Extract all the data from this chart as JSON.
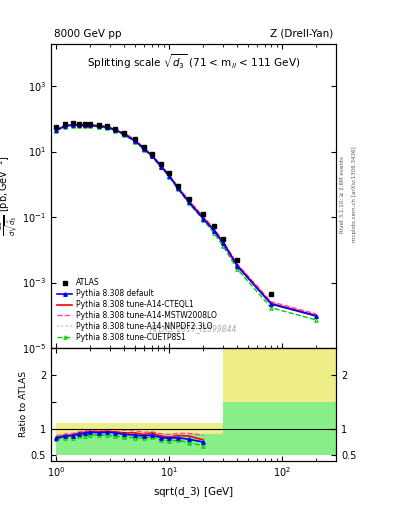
{
  "title_left": "8000 GeV pp",
  "title_right": "Z (Drell-Yan)",
  "inner_title": "Splitting scale $\\sqrt{\\mathrm{d}_3}$ (71 < m$_{ll}$ < 111 GeV)",
  "ylabel_main": "d$\\sigma$/dsqrt($\\widetilde{d}_3$) [pb,GeV$^{-1}$]",
  "ylabel_ratio": "Ratio to ATLAS",
  "xlabel": "sqrt{d_3} [GeV]",
  "watermark": "ATLAS_2017_I1599844",
  "atlas_x": [
    1.0,
    1.2,
    1.4,
    1.6,
    1.8,
    2.0,
    2.4,
    2.8,
    3.3,
    4.0,
    5.0,
    6.0,
    7.0,
    8.5,
    10.0,
    12.0,
    15.0,
    20.0,
    25.0,
    30.0,
    40.0,
    80.0
  ],
  "atlas_y": [
    55,
    70,
    75,
    72,
    70,
    68,
    65,
    60,
    50,
    38,
    24,
    14,
    8.5,
    4.2,
    2.2,
    0.9,
    0.35,
    0.12,
    0.055,
    0.022,
    0.005,
    0.00045
  ],
  "pythia_default_x": [
    1.0,
    1.2,
    1.4,
    1.6,
    1.8,
    2.0,
    2.4,
    2.8,
    3.3,
    4.0,
    5.0,
    6.0,
    7.0,
    8.5,
    10.0,
    12.0,
    15.0,
    20.0,
    25.0,
    30.0,
    40.0,
    80.0,
    200.0
  ],
  "pythia_default_y": [
    45,
    60,
    65,
    65,
    64,
    63,
    60,
    56,
    46,
    34,
    21,
    12,
    7.5,
    3.5,
    1.8,
    0.75,
    0.28,
    0.09,
    0.038,
    0.016,
    0.0032,
    0.00022,
    9.5e-05
  ],
  "pythia_cteq_x": [
    1.0,
    1.2,
    1.4,
    1.6,
    1.8,
    2.0,
    2.4,
    2.8,
    3.3,
    4.0,
    5.0,
    6.0,
    7.0,
    8.5,
    10.0,
    12.0,
    15.0,
    20.0,
    25.0,
    30.0,
    40.0,
    80.0,
    200.0
  ],
  "pythia_cteq_y": [
    46,
    61,
    66,
    66,
    65,
    64,
    61,
    57,
    47,
    35,
    22,
    12.5,
    7.8,
    3.6,
    1.85,
    0.78,
    0.3,
    0.095,
    0.04,
    0.017,
    0.0034,
    0.00023,
    9.8e-05
  ],
  "pythia_mstw_x": [
    1.0,
    1.2,
    1.4,
    1.6,
    1.8,
    2.0,
    2.4,
    2.8,
    3.3,
    4.0,
    5.0,
    6.0,
    7.0,
    8.5,
    10.0,
    12.0,
    15.0,
    20.0,
    25.0,
    30.0,
    40.0,
    80.0,
    200.0
  ],
  "pythia_mstw_y": [
    47,
    63,
    68,
    68,
    67,
    66,
    63,
    59,
    49,
    37,
    23,
    13,
    8.0,
    3.8,
    1.95,
    0.82,
    0.32,
    0.105,
    0.044,
    0.019,
    0.0037,
    0.00026,
    0.00011
  ],
  "pythia_nnpdf_x": [
    1.0,
    1.2,
    1.4,
    1.6,
    1.8,
    2.0,
    2.4,
    2.8,
    3.3,
    4.0,
    5.0,
    6.0,
    7.0,
    8.5,
    10.0,
    12.0,
    15.0,
    20.0,
    25.0,
    30.0,
    40.0,
    80.0,
    200.0
  ],
  "pythia_nnpdf_y": [
    46,
    61,
    66,
    66,
    65,
    64,
    61,
    57,
    47,
    35,
    22,
    12.5,
    7.7,
    3.6,
    1.85,
    0.78,
    0.3,
    0.097,
    0.041,
    0.0175,
    0.0035,
    0.000245,
    0.000105
  ],
  "pythia_cuetp_x": [
    1.0,
    1.2,
    1.4,
    1.6,
    1.8,
    2.0,
    2.4,
    2.8,
    3.3,
    4.0,
    5.0,
    6.0,
    7.0,
    8.5,
    10.0,
    12.0,
    15.0,
    20.0,
    25.0,
    30.0,
    40.0,
    80.0,
    200.0
  ],
  "pythia_cuetp_y": [
    44,
    58,
    62,
    62,
    61,
    60,
    57,
    53,
    43,
    32,
    20,
    11.5,
    7.1,
    3.3,
    1.7,
    0.7,
    0.26,
    0.082,
    0.032,
    0.013,
    0.0026,
    0.00017,
    7.2e-05
  ],
  "ratio_default_x": [
    1.0,
    1.2,
    1.4,
    1.6,
    1.8,
    2.0,
    2.4,
    2.8,
    3.3,
    4.0,
    5.0,
    6.0,
    7.0,
    8.5,
    10.0,
    12.0,
    15.0,
    20.0
  ],
  "ratio_default_y": [
    0.82,
    0.86,
    0.87,
    0.9,
    0.91,
    0.93,
    0.92,
    0.93,
    0.92,
    0.89,
    0.88,
    0.86,
    0.88,
    0.83,
    0.82,
    0.83,
    0.8,
    0.75
  ],
  "ratio_cteq_x": [
    1.0,
    1.2,
    1.4,
    1.6,
    1.8,
    2.0,
    2.4,
    2.8,
    3.3,
    4.0,
    5.0,
    6.0,
    7.0,
    8.5,
    10.0,
    12.0,
    15.0,
    20.0
  ],
  "ratio_cteq_y": [
    0.84,
    0.87,
    0.88,
    0.92,
    0.93,
    0.94,
    0.94,
    0.95,
    0.94,
    0.92,
    0.92,
    0.89,
    0.92,
    0.86,
    0.84,
    0.87,
    0.86,
    0.79
  ],
  "ratio_mstw_x": [
    1.0,
    1.2,
    1.4,
    1.6,
    1.8,
    2.0,
    2.4,
    2.8,
    3.3,
    4.0,
    5.0,
    6.0,
    7.0,
    8.5,
    10.0,
    12.0,
    15.0,
    20.0
  ],
  "ratio_mstw_y": [
    0.85,
    0.9,
    0.91,
    0.94,
    0.96,
    0.97,
    0.97,
    0.98,
    0.98,
    0.97,
    0.96,
    0.93,
    0.94,
    0.9,
    0.89,
    0.91,
    0.91,
    0.875
  ],
  "ratio_nnpdf_x": [
    1.0,
    1.2,
    1.4,
    1.6,
    1.8,
    2.0,
    2.4,
    2.8,
    3.3,
    4.0,
    5.0,
    6.0,
    7.0,
    8.5,
    10.0,
    12.0,
    15.0,
    20.0
  ],
  "ratio_nnpdf_y": [
    0.84,
    0.87,
    0.88,
    0.92,
    0.93,
    0.94,
    0.94,
    0.95,
    0.94,
    0.92,
    0.92,
    0.89,
    0.91,
    0.86,
    0.84,
    0.87,
    0.86,
    0.8
  ],
  "ratio_cuetp_x": [
    1.0,
    1.2,
    1.4,
    1.6,
    1.8,
    2.0,
    2.4,
    2.8,
    3.3,
    4.0,
    5.0,
    6.0,
    7.0,
    8.5,
    10.0,
    12.0,
    15.0,
    20.0
  ],
  "ratio_cuetp_y": [
    0.8,
    0.83,
    0.83,
    0.86,
    0.87,
    0.88,
    0.88,
    0.88,
    0.86,
    0.84,
    0.83,
    0.82,
    0.84,
    0.79,
    0.77,
    0.78,
    0.74,
    0.68
  ],
  "xlim": [
    0.9,
    300
  ],
  "ylim_main": [
    1e-05,
    20000.0
  ],
  "ylim_ratio": [
    0.4,
    2.5
  ],
  "green_band_x1": 1.0,
  "green_band_x2": 30.0,
  "green_band_x3": 300.0,
  "green_band_lo1": 0.5,
  "green_band_hi1": 1.05,
  "green_band_lo2": 0.5,
  "green_band_hi2": 2.6,
  "yellow_band_x1": 1.0,
  "yellow_band_x2": 30.0,
  "yellow_band_x3": 300.0,
  "yellow_band_lo1": 0.9,
  "yellow_band_hi1": 1.1,
  "yellow_band_lo2": 1.5,
  "yellow_band_hi2": 2.6
}
